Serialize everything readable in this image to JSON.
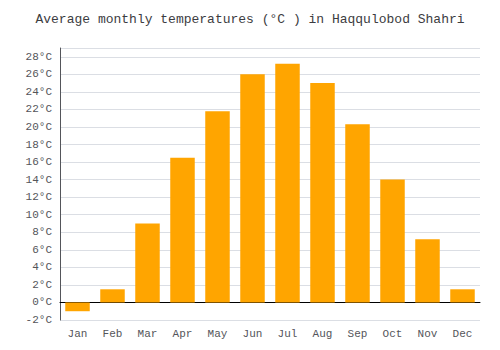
{
  "chart_data": {
    "type": "bar",
    "title": "Average monthly temperatures (°C ) in Haqqulobod Shahri",
    "categories": [
      "Jan",
      "Feb",
      "Mar",
      "Apr",
      "May",
      "Jun",
      "Jul",
      "Aug",
      "Sep",
      "Oct",
      "Nov",
      "Dec"
    ],
    "values": [
      -1.0,
      1.5,
      9.0,
      16.5,
      21.8,
      26.0,
      27.2,
      25.0,
      20.3,
      14.0,
      7.2,
      1.5
    ],
    "color": "#FFA500",
    "ylim": [
      -2,
      29
    ],
    "yticks": [
      {
        "value": -2,
        "label": "-2°C"
      },
      {
        "value": 0,
        "label": "0°C"
      },
      {
        "value": 2,
        "label": "2°C"
      },
      {
        "value": 4,
        "label": "4°C"
      },
      {
        "value": 6,
        "label": "6°C"
      },
      {
        "value": 8,
        "label": "8°C"
      },
      {
        "value": 10,
        "label": "10°C"
      },
      {
        "value": 12,
        "label": "12°C"
      },
      {
        "value": 14,
        "label": "14°C"
      },
      {
        "value": 16,
        "label": "16°C"
      },
      {
        "value": 18,
        "label": "18°C"
      },
      {
        "value": 20,
        "label": "20°C"
      },
      {
        "value": 22,
        "label": "22°C"
      },
      {
        "value": 24,
        "label": "24°C"
      },
      {
        "value": 26,
        "label": "26°C"
      },
      {
        "value": 28,
        "label": "28°C"
      }
    ],
    "grid": true
  }
}
